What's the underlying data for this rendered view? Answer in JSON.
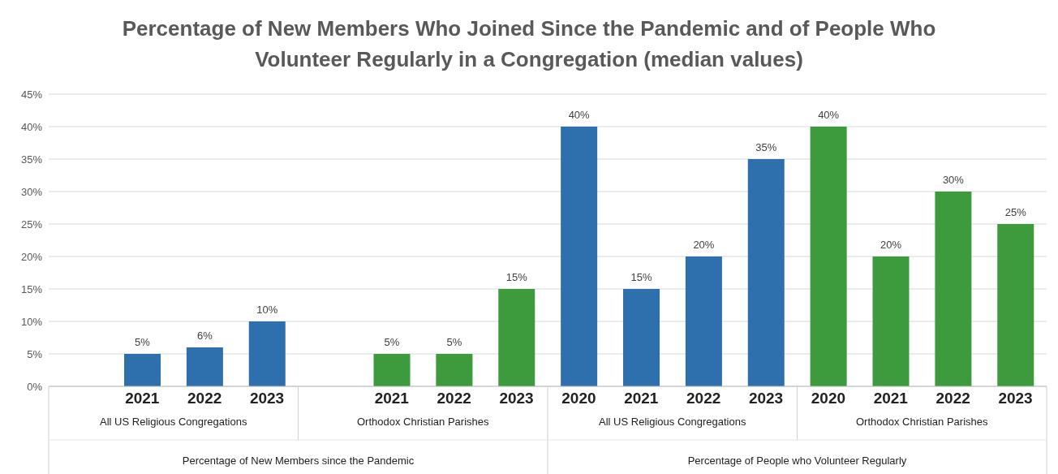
{
  "chart_data": {
    "type": "bar",
    "title": "Percentage of New Members Who Joined Since the Pandemic and of People Who Volunteer Regularly in a Congregation (median values)",
    "categories": [
      null,
      "2021",
      "2022",
      "2023",
      null,
      "2021",
      "2022",
      "2023",
      "2020",
      "2021",
      "2022",
      "2023",
      "2020",
      "2021",
      "2022",
      "2023"
    ],
    "values": [
      null,
      5,
      6,
      10,
      null,
      5,
      5,
      15,
      40,
      15,
      20,
      35,
      40,
      20,
      30,
      25
    ],
    "colors": [
      "#2e6fad",
      "#2e6fad",
      "#2e6fad",
      "#2e6fad",
      "#3d9b3d",
      "#3d9b3d",
      "#3d9b3d",
      "#3d9b3d",
      "#2e6fad",
      "#2e6fad",
      "#2e6fad",
      "#2e6fad",
      "#3d9b3d",
      "#3d9b3d",
      "#3d9b3d",
      "#3d9b3d"
    ],
    "value_labels": [
      null,
      "5%",
      "6%",
      "10%",
      null,
      "5%",
      "5%",
      "15%",
      "40%",
      "15%",
      "20%",
      "35%",
      "40%",
      "20%",
      "30%",
      "25%"
    ],
    "ylim": [
      0,
      45
    ],
    "yticks": [
      {
        "value": 0,
        "label": "0%"
      },
      {
        "value": 5,
        "label": "5%"
      },
      {
        "value": 10,
        "label": "10%"
      },
      {
        "value": 15,
        "label": "15%"
      },
      {
        "value": 20,
        "label": "20%"
      },
      {
        "value": 25,
        "label": "25%"
      },
      {
        "value": 30,
        "label": "30%"
      },
      {
        "value": 35,
        "label": "35%"
      },
      {
        "value": 40,
        "label": "40%"
      },
      {
        "value": 45,
        "label": "45%"
      }
    ],
    "grid": "y",
    "annotations": [
      "All US Religious Congregations",
      "Orthodox Christian Parishes",
      "All US Religious Congregations",
      "Orthodox Christian Parishes",
      "Percentage of New Members since the Pandemic",
      "Percentage of People who Volunteer Regularly"
    ]
  }
}
